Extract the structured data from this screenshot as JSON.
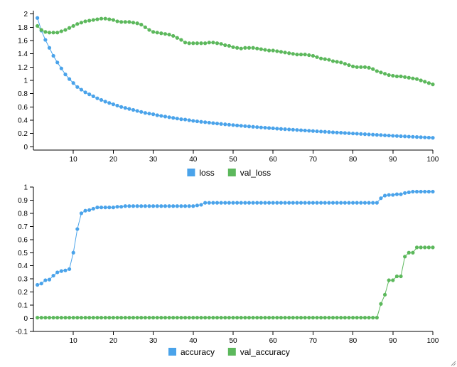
{
  "chart_data": [
    {
      "type": "line",
      "x_ticks": [
        10,
        20,
        30,
        40,
        50,
        60,
        70,
        80,
        90,
        100
      ],
      "y_ticks": [
        0,
        0.2,
        0.4,
        0.6,
        0.8,
        1,
        1.2,
        1.4,
        1.6,
        1.8,
        2
      ],
      "xlim": [
        0,
        100
      ],
      "ylim": [
        -0.05,
        2.05
      ],
      "grid": false,
      "legend_position": "bottom",
      "x": [
        1,
        2,
        3,
        4,
        5,
        6,
        7,
        8,
        9,
        10,
        11,
        12,
        13,
        14,
        15,
        16,
        17,
        18,
        19,
        20,
        21,
        22,
        23,
        24,
        25,
        26,
        27,
        28,
        29,
        30,
        31,
        32,
        33,
        34,
        35,
        36,
        37,
        38,
        39,
        40,
        41,
        42,
        43,
        44,
        45,
        46,
        47,
        48,
        49,
        50,
        51,
        52,
        53,
        54,
        55,
        56,
        57,
        58,
        59,
        60,
        61,
        62,
        63,
        64,
        65,
        66,
        67,
        68,
        69,
        70,
        71,
        72,
        73,
        74,
        75,
        76,
        77,
        78,
        79,
        80,
        81,
        82,
        83,
        84,
        85,
        86,
        87,
        88,
        89,
        90,
        91,
        92,
        93,
        94,
        95,
        96,
        97,
        98,
        99,
        100
      ],
      "series": [
        {
          "name": "loss",
          "color": "#4aa3ea",
          "values": [
            1.94,
            1.75,
            1.61,
            1.49,
            1.37,
            1.27,
            1.18,
            1.09,
            1.02,
            0.96,
            0.9,
            0.86,
            0.82,
            0.79,
            0.76,
            0.73,
            0.705,
            0.68,
            0.66,
            0.64,
            0.62,
            0.6,
            0.585,
            0.57,
            0.555,
            0.54,
            0.525,
            0.51,
            0.5,
            0.49,
            0.475,
            0.465,
            0.455,
            0.445,
            0.435,
            0.425,
            0.415,
            0.41,
            0.4,
            0.39,
            0.383,
            0.376,
            0.37,
            0.363,
            0.356,
            0.35,
            0.344,
            0.338,
            0.332,
            0.327,
            0.321,
            0.316,
            0.311,
            0.306,
            0.301,
            0.296,
            0.291,
            0.287,
            0.282,
            0.278,
            0.273,
            0.269,
            0.265,
            0.261,
            0.257,
            0.253,
            0.249,
            0.245,
            0.241,
            0.237,
            0.233,
            0.229,
            0.226,
            0.222,
            0.218,
            0.214,
            0.211,
            0.207,
            0.204,
            0.2,
            0.197,
            0.193,
            0.19,
            0.186,
            0.183,
            0.179,
            0.176,
            0.172,
            0.169,
            0.165,
            0.162,
            0.159,
            0.156,
            0.153,
            0.15,
            0.147,
            0.144,
            0.141,
            0.138,
            0.135
          ]
        },
        {
          "name": "val_loss",
          "color": "#5cb85c",
          "values": [
            1.82,
            1.76,
            1.73,
            1.72,
            1.72,
            1.72,
            1.74,
            1.76,
            1.79,
            1.82,
            1.85,
            1.87,
            1.89,
            1.9,
            1.91,
            1.92,
            1.93,
            1.93,
            1.92,
            1.91,
            1.89,
            1.88,
            1.88,
            1.88,
            1.87,
            1.86,
            1.84,
            1.8,
            1.76,
            1.73,
            1.72,
            1.71,
            1.7,
            1.69,
            1.67,
            1.64,
            1.61,
            1.57,
            1.56,
            1.56,
            1.56,
            1.56,
            1.56,
            1.57,
            1.57,
            1.56,
            1.55,
            1.53,
            1.52,
            1.5,
            1.49,
            1.48,
            1.49,
            1.49,
            1.49,
            1.48,
            1.47,
            1.46,
            1.45,
            1.45,
            1.44,
            1.43,
            1.42,
            1.41,
            1.4,
            1.39,
            1.39,
            1.39,
            1.38,
            1.37,
            1.35,
            1.33,
            1.32,
            1.31,
            1.29,
            1.28,
            1.27,
            1.25,
            1.23,
            1.21,
            1.2,
            1.2,
            1.2,
            1.19,
            1.17,
            1.14,
            1.12,
            1.1,
            1.08,
            1.07,
            1.06,
            1.06,
            1.05,
            1.04,
            1.03,
            1.02,
            1.0,
            0.98,
            0.96,
            0.94
          ]
        }
      ]
    },
    {
      "type": "line",
      "x_ticks": [
        10,
        20,
        30,
        40,
        50,
        60,
        70,
        80,
        90,
        100
      ],
      "y_ticks": [
        -0.1,
        0,
        0.1,
        0.2,
        0.3,
        0.4,
        0.5,
        0.6,
        0.7,
        0.8,
        0.9,
        1
      ],
      "xlim": [
        0,
        100
      ],
      "ylim": [
        -0.1,
        1
      ],
      "grid": false,
      "legend_position": "bottom",
      "x": [
        1,
        2,
        3,
        4,
        5,
        6,
        7,
        8,
        9,
        10,
        11,
        12,
        13,
        14,
        15,
        16,
        17,
        18,
        19,
        20,
        21,
        22,
        23,
        24,
        25,
        26,
        27,
        28,
        29,
        30,
        31,
        32,
        33,
        34,
        35,
        36,
        37,
        38,
        39,
        40,
        41,
        42,
        43,
        44,
        45,
        46,
        47,
        48,
        49,
        50,
        51,
        52,
        53,
        54,
        55,
        56,
        57,
        58,
        59,
        60,
        61,
        62,
        63,
        64,
        65,
        66,
        67,
        68,
        69,
        70,
        71,
        72,
        73,
        74,
        75,
        76,
        77,
        78,
        79,
        80,
        81,
        82,
        83,
        84,
        85,
        86,
        87,
        88,
        89,
        90,
        91,
        92,
        93,
        94,
        95,
        96,
        97,
        98,
        99,
        100
      ],
      "series": [
        {
          "name": "accuracy",
          "color": "#4aa3ea",
          "values": [
            0.255,
            0.265,
            0.29,
            0.295,
            0.325,
            0.35,
            0.36,
            0.365,
            0.375,
            0.5,
            0.68,
            0.8,
            0.82,
            0.825,
            0.835,
            0.845,
            0.845,
            0.845,
            0.845,
            0.845,
            0.85,
            0.85,
            0.855,
            0.855,
            0.855,
            0.855,
            0.855,
            0.855,
            0.855,
            0.855,
            0.855,
            0.855,
            0.855,
            0.855,
            0.855,
            0.855,
            0.855,
            0.855,
            0.855,
            0.855,
            0.86,
            0.865,
            0.88,
            0.88,
            0.88,
            0.88,
            0.88,
            0.88,
            0.88,
            0.88,
            0.88,
            0.88,
            0.88,
            0.88,
            0.88,
            0.88,
            0.88,
            0.88,
            0.88,
            0.88,
            0.88,
            0.88,
            0.88,
            0.88,
            0.88,
            0.88,
            0.88,
            0.88,
            0.88,
            0.88,
            0.88,
            0.88,
            0.88,
            0.88,
            0.88,
            0.88,
            0.88,
            0.88,
            0.88,
            0.88,
            0.88,
            0.88,
            0.88,
            0.88,
            0.88,
            0.88,
            0.915,
            0.935,
            0.94,
            0.94,
            0.945,
            0.945,
            0.955,
            0.96,
            0.965,
            0.965,
            0.965,
            0.965,
            0.965,
            0.965
          ]
        },
        {
          "name": "val_accuracy",
          "color": "#5cb85c",
          "values": [
            0.005,
            0.005,
            0.005,
            0.005,
            0.005,
            0.005,
            0.005,
            0.005,
            0.005,
            0.005,
            0.005,
            0.005,
            0.005,
            0.005,
            0.005,
            0.005,
            0.005,
            0.005,
            0.005,
            0.005,
            0.005,
            0.005,
            0.005,
            0.005,
            0.005,
            0.005,
            0.005,
            0.005,
            0.005,
            0.005,
            0.005,
            0.005,
            0.005,
            0.005,
            0.005,
            0.005,
            0.005,
            0.005,
            0.005,
            0.005,
            0.005,
            0.005,
            0.005,
            0.005,
            0.005,
            0.005,
            0.005,
            0.005,
            0.005,
            0.005,
            0.005,
            0.005,
            0.005,
            0.005,
            0.005,
            0.005,
            0.005,
            0.005,
            0.005,
            0.005,
            0.005,
            0.005,
            0.005,
            0.005,
            0.005,
            0.005,
            0.005,
            0.005,
            0.005,
            0.005,
            0.005,
            0.005,
            0.005,
            0.005,
            0.005,
            0.005,
            0.005,
            0.005,
            0.005,
            0.005,
            0.005,
            0.005,
            0.005,
            0.005,
            0.005,
            0.005,
            0.11,
            0.18,
            0.29,
            0.29,
            0.32,
            0.32,
            0.47,
            0.5,
            0.5,
            0.54,
            0.54,
            0.54,
            0.54,
            0.54
          ]
        }
      ]
    }
  ]
}
